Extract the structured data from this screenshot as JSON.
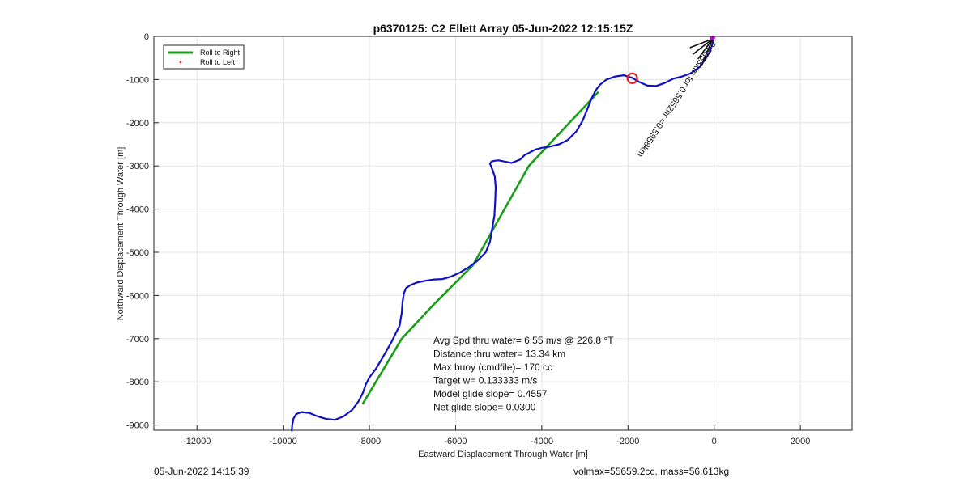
{
  "chart_data": {
    "type": "line",
    "title": "p6370125: C2 Ellett Array 05-Jun-2022 12:15:15Z",
    "xlabel": "Eastward Displacement Through Water [m]",
    "ylabel": "Northward Displacement Through Water [m]",
    "xlim": [
      -13000,
      3200
    ],
    "ylim": [
      -9120,
      0
    ],
    "xticks": [
      -12000,
      -10000,
      -8000,
      -6000,
      -4000,
      -2000,
      0,
      2000
    ],
    "yticks": [
      0,
      -1000,
      -2000,
      -3000,
      -4000,
      -5000,
      -6000,
      -7000,
      -8000,
      -9000
    ],
    "grid": true,
    "legend_position": "top-left",
    "legend": [
      {
        "label": "Roll to Right",
        "color": "#1a9e1a",
        "marker": "line"
      },
      {
        "label": "Roll to Left",
        "color": "#e02020",
        "marker": "dot"
      }
    ],
    "series": [
      {
        "color": "#1010c8",
        "x": [
          -9800,
          -9790,
          -9760,
          -9700,
          -9580,
          -9400,
          -9200,
          -9000,
          -8800,
          -8600,
          -8400,
          -8250,
          -8150,
          -8080,
          -8000,
          -7850,
          -7700,
          -7500,
          -7300,
          -7250,
          -7230,
          -7200,
          -7150,
          -7050,
          -6900,
          -6700,
          -6500,
          -6300,
          -6100,
          -5900,
          -5700,
          -5500,
          -5300,
          -5200,
          -5150,
          -5100,
          -5080,
          -5070,
          -5090,
          -5140,
          -5180,
          -5200,
          -5170,
          -5100,
          -5000,
          -4850,
          -4700,
          -4500,
          -4400,
          -4300,
          -4150,
          -4000,
          -3800,
          -3600,
          -3400,
          -3200,
          -3050,
          -2950,
          -2850,
          -2750,
          -2650,
          -2500,
          -2300,
          -2100,
          -1900,
          -1750,
          -1550,
          -1350,
          -1150,
          -950,
          -750,
          -550,
          -350,
          -200,
          -100,
          -50,
          0
        ],
        "y": [
          -9130,
          -9000,
          -8850,
          -8750,
          -8700,
          -8720,
          -8800,
          -8860,
          -8880,
          -8800,
          -8650,
          -8450,
          -8250,
          -8050,
          -7900,
          -7700,
          -7450,
          -7100,
          -6700,
          -6400,
          -6150,
          -5950,
          -5830,
          -5760,
          -5700,
          -5660,
          -5630,
          -5620,
          -5560,
          -5470,
          -5350,
          -5200,
          -5000,
          -4750,
          -4450,
          -4150,
          -3800,
          -3500,
          -3250,
          -3100,
          -3000,
          -2950,
          -2900,
          -2880,
          -2870,
          -2900,
          -2930,
          -2850,
          -2750,
          -2700,
          -2620,
          -2580,
          -2550,
          -2500,
          -2400,
          -2200,
          -1950,
          -1700,
          -1450,
          -1250,
          -1120,
          -1000,
          -930,
          -900,
          -960,
          -1050,
          -1140,
          -1150,
          -1080,
          -980,
          -930,
          -860,
          -720,
          -520,
          -350,
          -200,
          -20
        ]
      },
      {
        "color": "#1a9e1a",
        "x": [
          -8150,
          -7250,
          -6500,
          -5600,
          -4300,
          -2700
        ],
        "y": [
          -8500,
          -7000,
          -6200,
          -5300,
          -3000,
          -1300
        ]
      }
    ],
    "markers": [
      {
        "type": "circle",
        "x": -1900,
        "y": -970,
        "color": "#e02020"
      }
    ],
    "annotations": {
      "stats": [
        "Avg Spd thru water=  6.55 m/s @ 226.8 °T",
        "Distance thru water= 13.34 km",
        "Max buoy (cmdfile)= 170 cc",
        "Target w= 0.133333 m/s",
        "Model glide slope= 0.4557",
        "Net glide slope= 0.0300"
      ],
      "rotated_label": "0.5653km for 0.5652hr =0.5958km"
    }
  },
  "footer": {
    "timestamp": "05-Jun-2022 14:15:39",
    "vol_mass": "volmax=55659.2cc, mass=56.613kg"
  }
}
